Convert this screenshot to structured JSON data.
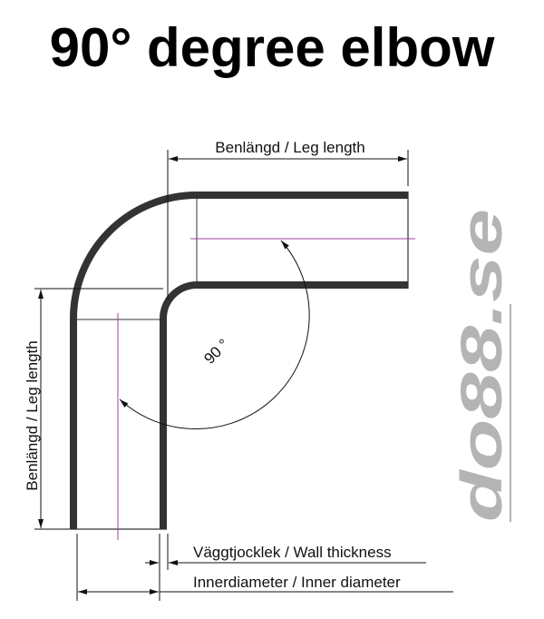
{
  "title": "90° degree elbow",
  "labels": {
    "leg_length_top": "Benlängd / Leg length",
    "leg_length_left": "Benlängd / Leg length",
    "angle": "90 °",
    "wall_thickness": "Väggtjocklek / Wall thickness",
    "inner_diameter": "Innerdiameter / Inner diameter"
  },
  "logo": "do88.se",
  "colors": {
    "pipe": "#333333",
    "centerline": "#a040a0",
    "logo": "#b4b4b4"
  }
}
